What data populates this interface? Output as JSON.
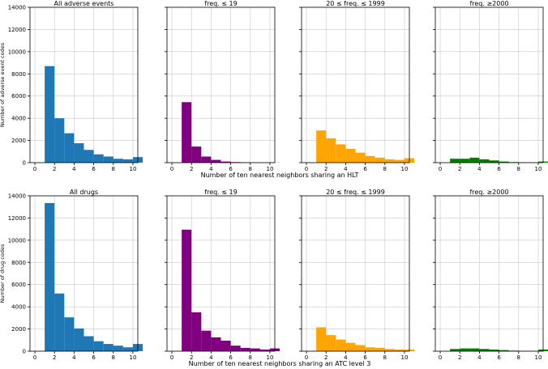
{
  "chart_data": [
    {
      "type": "bar",
      "title": "All adverse events",
      "color": "#1f77b4",
      "ylabel": "Number of adverse event codes",
      "xlim": [
        -0.5,
        10.5
      ],
      "ylim": [
        0,
        14000
      ],
      "xticks": [
        0,
        2,
        4,
        6,
        8,
        10
      ],
      "yticks": [
        0,
        2000,
        4000,
        6000,
        8000,
        10000,
        12000,
        14000
      ],
      "x": [
        0,
        1,
        2,
        3,
        4,
        5,
        6,
        7,
        8,
        9,
        10
      ],
      "values": [
        0,
        8700,
        4000,
        2650,
        1750,
        1150,
        750,
        550,
        350,
        300,
        500
      ],
      "grid": true
    },
    {
      "type": "bar",
      "title": "freq. ≤ 19",
      "color": "#800080",
      "xlim": [
        -0.5,
        10.5
      ],
      "ylim": [
        0,
        14000
      ],
      "xticks": [
        0,
        2,
        4,
        6,
        8,
        10
      ],
      "x": [
        0,
        1,
        2,
        3,
        4,
        5,
        6,
        7,
        8,
        9,
        10
      ],
      "values": [
        0,
        5450,
        1450,
        550,
        250,
        100,
        50,
        20,
        10,
        10,
        10
      ],
      "grid": true
    },
    {
      "type": "bar",
      "title": "20 ≤ freq. ≤ 1999",
      "color": "#ffa500",
      "xlim": [
        -0.5,
        10.5
      ],
      "ylim": [
        0,
        14000
      ],
      "xticks": [
        0,
        2,
        4,
        6,
        8,
        10
      ],
      "x": [
        0,
        1,
        2,
        3,
        4,
        5,
        6,
        7,
        8,
        9,
        10
      ],
      "values": [
        0,
        2900,
        2200,
        1650,
        1250,
        900,
        600,
        450,
        300,
        250,
        400
      ],
      "grid": true
    },
    {
      "type": "bar",
      "title": "freq.  ≥2000",
      "color": "#008000",
      "xlim": [
        -0.5,
        10.5
      ],
      "ylim": [
        0,
        14000
      ],
      "xticks": [
        0,
        2,
        4,
        6,
        8,
        10
      ],
      "x": [
        0,
        1,
        2,
        3,
        4,
        5,
        6,
        7,
        8,
        9,
        10
      ],
      "values": [
        0,
        350,
        350,
        450,
        300,
        200,
        100,
        50,
        30,
        20,
        100
      ],
      "grid": true
    },
    {
      "type": "bar",
      "title": "All drugs",
      "color": "#1f77b4",
      "ylabel": "Number of drug codes",
      "xlim": [
        -0.5,
        10.5
      ],
      "ylim": [
        0,
        14000
      ],
      "xticks": [
        0,
        2,
        4,
        6,
        8,
        10
      ],
      "yticks": [
        0,
        2000,
        4000,
        6000,
        8000,
        10000,
        12000,
        14000
      ],
      "x": [
        0,
        1,
        2,
        3,
        4,
        5,
        6,
        7,
        8,
        9,
        10
      ],
      "values": [
        0,
        13350,
        5200,
        3050,
        2050,
        1350,
        900,
        650,
        500,
        350,
        650
      ],
      "grid": true
    },
    {
      "type": "bar",
      "title": "freq. ≤ 19",
      "color": "#800080",
      "xlim": [
        -0.5,
        10.5
      ],
      "ylim": [
        0,
        14000
      ],
      "xticks": [
        0,
        2,
        4,
        6,
        8,
        10
      ],
      "x": [
        0,
        1,
        2,
        3,
        4,
        5,
        6,
        7,
        8,
        9,
        10
      ],
      "values": [
        0,
        10950,
        3500,
        1850,
        1250,
        950,
        500,
        300,
        250,
        150,
        250
      ],
      "grid": true
    },
    {
      "type": "bar",
      "title": "20 ≤ freq. ≤ 1999",
      "color": "#ffa500",
      "xlim": [
        -0.5,
        10.5
      ],
      "ylim": [
        0,
        14000
      ],
      "xticks": [
        0,
        2,
        4,
        6,
        8,
        10
      ],
      "x": [
        0,
        1,
        2,
        3,
        4,
        5,
        6,
        7,
        8,
        9,
        10
      ],
      "values": [
        0,
        2150,
        1450,
        1050,
        750,
        550,
        350,
        300,
        200,
        150,
        150
      ],
      "grid": true
    },
    {
      "type": "bar",
      "title": "freq.  ≥2000",
      "color": "#008000",
      "xlim": [
        -0.5,
        10.5
      ],
      "ylim": [
        0,
        14000
      ],
      "xticks": [
        0,
        2,
        4,
        6,
        8,
        10
      ],
      "x": [
        0,
        1,
        2,
        3,
        4,
        5,
        6,
        7,
        8,
        9,
        10
      ],
      "values": [
        0,
        200,
        250,
        250,
        200,
        150,
        100,
        50,
        30,
        20,
        150
      ],
      "grid": true
    }
  ],
  "row_xlabels": [
    "Number of ten nearest neighbors sharing an HLT",
    "Number of ten nearest neighbors sharing an ATC level 3"
  ]
}
